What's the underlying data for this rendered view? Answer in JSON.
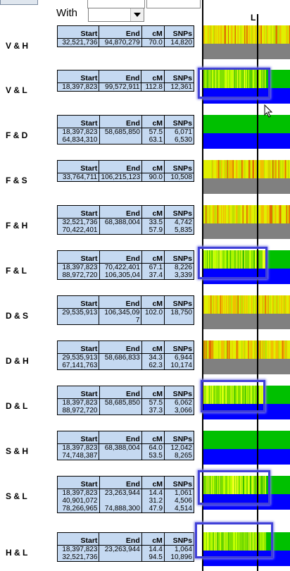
{
  "header": {
    "top_button": "",
    "with_label": "With",
    "with_value": "",
    "column_marker": "L"
  },
  "table_headers": {
    "start": "Start",
    "end": "End",
    "cm": "cM",
    "snps": "SNPs"
  },
  "colors": {
    "table_bg": "#c5d9f1",
    "match_green": "#00c000",
    "fail_blue": "#0000ff",
    "no_data_gray": "#808080",
    "selection": "#4040d8"
  },
  "pairs": [
    {
      "label": "V & H",
      "rows": [
        [
          "32,521,736",
          "94,870,279",
          "70.0",
          "14,820"
        ]
      ],
      "bands": [
        "noise",
        "gray"
      ]
    },
    {
      "label": "V & L",
      "rows": [
        [
          "18,397,823",
          "99,572,911",
          "112.8",
          "12,361"
        ]
      ],
      "bands": [
        "noise-green",
        "blue"
      ]
    },
    {
      "label": "F & D",
      "rows": [
        [
          "18,397,823",
          "58,685,850",
          "57.5",
          "6,071"
        ],
        [
          "64,834,310",
          "",
          "63.1",
          "6,530"
        ]
      ],
      "bands": [
        "green",
        "blue"
      ]
    },
    {
      "label": "F & S",
      "rows": [
        [
          "33,764,711",
          "106,215,123",
          "90.0",
          "10,508"
        ]
      ],
      "bands": [
        "noise",
        "gray"
      ]
    },
    {
      "label": "F & H",
      "rows": [
        [
          "32,521,736",
          "68,388,004",
          "33.5",
          "4,742"
        ],
        [
          "70,422,401",
          "",
          "57.9",
          "5,835"
        ]
      ],
      "bands": [
        "noise",
        "gray"
      ]
    },
    {
      "label": "F & L",
      "rows": [
        [
          "18,397,823",
          "70,422,401",
          "67.1",
          "8,226"
        ],
        [
          "88,972,720",
          "106,305,04",
          "37.4",
          "3,339"
        ]
      ],
      "bands": [
        "noise-green",
        "blue"
      ]
    },
    {
      "label": "D & S",
      "rows": [
        [
          "29,535,913",
          "106,345,09",
          "102.0",
          "18,750"
        ],
        [
          "",
          "7",
          "",
          ""
        ]
      ],
      "bands": [
        "noise",
        "gray"
      ]
    },
    {
      "label": "D & H",
      "rows": [
        [
          "29,535,913",
          "58,686,833",
          "34.3",
          "6,944"
        ],
        [
          "67,141,763",
          "",
          "62.3",
          "10,174"
        ]
      ],
      "bands": [
        "noise",
        "gray"
      ]
    },
    {
      "label": "D & L",
      "rows": [
        [
          "18,397,823",
          "58,685,850",
          "57.5",
          "6,062"
        ],
        [
          "88,972,720",
          "",
          "37.3",
          "3,066"
        ]
      ],
      "bands": [
        "noise-green",
        "blue"
      ]
    },
    {
      "label": "S & H",
      "rows": [
        [
          "18,397,823",
          "68,388,004",
          "64.0",
          "12,042"
        ],
        [
          "74,748,387",
          "",
          "53.5",
          "8,265"
        ]
      ],
      "bands": [
        "green",
        "blue"
      ]
    },
    {
      "label": "S & L",
      "rows": [
        [
          "18,397,823",
          "23,263,944",
          "14.4",
          "1,061"
        ],
        [
          "40,901,072",
          "",
          "31.2",
          "4,506"
        ],
        [
          "78,266,965",
          "74,888,300",
          "47.9",
          "4,514"
        ]
      ],
      "bands": [
        "noise-green",
        "blue"
      ]
    },
    {
      "label": "H & L",
      "rows": [
        [
          "18,397,823",
          "23,263,944",
          "14.4",
          "1,064"
        ],
        [
          "32,521,736",
          "",
          "94.5",
          "10,896"
        ]
      ],
      "bands": [
        "noise-green",
        "blue"
      ]
    }
  ]
}
